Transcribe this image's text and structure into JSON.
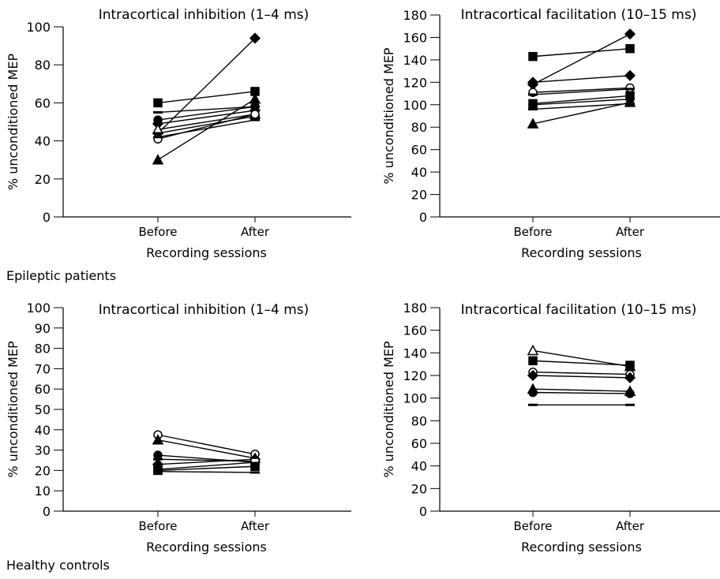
{
  "group_captions": [
    "Epileptic patients",
    "Healthy controls"
  ],
  "chart_data": [
    {
      "type": "line",
      "group": "Epileptic patients",
      "title": "Intracortical inhibition (1–4 ms)",
      "xlabel": "Recording sessions",
      "ylabel": "% unconditioned MEP",
      "categories": [
        "Before",
        "After"
      ],
      "ylim": [
        0,
        100
      ],
      "yticks": [
        0,
        20,
        40,
        60,
        80,
        100
      ],
      "grid": false,
      "legend": "none",
      "series": [
        {
          "marker": "diamond-filled",
          "values": [
            44,
            94
          ]
        },
        {
          "marker": "square-filled",
          "values": [
            60,
            66
          ]
        },
        {
          "marker": "dash",
          "values": [
            55,
            58
          ]
        },
        {
          "marker": "circle-filled",
          "values": [
            51,
            58
          ]
        },
        {
          "marker": "diamond-filled",
          "values": [
            49,
            56
          ]
        },
        {
          "marker": "triangle-open",
          "values": [
            46,
            54
          ]
        },
        {
          "marker": "dash",
          "values": [
            44,
            53
          ]
        },
        {
          "marker": "circle-open",
          "values": [
            41,
            54
          ]
        },
        {
          "marker": "dash",
          "values": [
            42,
            51
          ]
        },
        {
          "marker": "triangle-filled",
          "values": [
            30,
            62
          ]
        }
      ]
    },
    {
      "type": "line",
      "group": "Epileptic patients",
      "title": "Intracortical facilitation (10–15 ms)",
      "xlabel": "Recording sessions",
      "ylabel": "% unconditioned MEP",
      "categories": [
        "Before",
        "After"
      ],
      "ylim": [
        0,
        180
      ],
      "yticks": [
        0,
        20,
        40,
        60,
        80,
        100,
        120,
        140,
        160,
        180
      ],
      "grid": false,
      "legend": "none",
      "series": [
        {
          "marker": "square-filled",
          "values": [
            143,
            150
          ]
        },
        {
          "marker": "diamond-filled",
          "values": [
            118,
            163
          ]
        },
        {
          "marker": "diamond-filled",
          "values": [
            120,
            126
          ]
        },
        {
          "marker": "circle-open",
          "values": [
            111,
            115
          ]
        },
        {
          "marker": "dash",
          "values": [
            109,
            114
          ]
        },
        {
          "marker": "square-filled",
          "values": [
            101,
            108
          ]
        },
        {
          "marker": "circle-filled",
          "values": [
            100,
            105
          ]
        },
        {
          "marker": "dash",
          "values": [
            96,
            101
          ]
        },
        {
          "marker": "triangle-filled",
          "values": [
            83,
            102
          ]
        }
      ]
    },
    {
      "type": "line",
      "group": "Healthy controls",
      "title": "Intracortical inhibition (1–4 ms)",
      "xlabel": "Recording sessions",
      "ylabel": "% unconditioned MEP",
      "categories": [
        "Before",
        "After"
      ],
      "ylim": [
        0,
        100
      ],
      "yticks": [
        0,
        10,
        20,
        30,
        40,
        50,
        60,
        70,
        80,
        90,
        100
      ],
      "grid": false,
      "legend": "none",
      "series": [
        {
          "marker": "circle-open",
          "values": [
            37.5,
            28
          ]
        },
        {
          "marker": "triangle-filled",
          "values": [
            35,
            26
          ]
        },
        {
          "marker": "circle-filled",
          "values": [
            27.5,
            24
          ]
        },
        {
          "marker": "dash",
          "values": [
            25.5,
            24.5
          ]
        },
        {
          "marker": "diamond-filled",
          "values": [
            23,
            25.5
          ]
        },
        {
          "marker": "square-open",
          "values": [
            20.5,
            24
          ]
        },
        {
          "marker": "square-filled",
          "values": [
            20,
            22
          ]
        },
        {
          "marker": "dash",
          "values": [
            19.5,
            19
          ]
        }
      ]
    },
    {
      "type": "line",
      "group": "Healthy controls",
      "title": "Intracortical facilitation (10–15 ms)",
      "xlabel": "Recording sessions",
      "ylabel": "% unconditioned MEP",
      "categories": [
        "Before",
        "After"
      ],
      "ylim": [
        0,
        180
      ],
      "yticks": [
        0,
        20,
        40,
        60,
        80,
        100,
        120,
        140,
        160,
        180
      ],
      "grid": false,
      "legend": "none",
      "series": [
        {
          "marker": "triangle-open",
          "values": [
            142,
            128
          ]
        },
        {
          "marker": "square-filled",
          "values": [
            133,
            129
          ]
        },
        {
          "marker": "circle-open",
          "values": [
            123,
            121
          ]
        },
        {
          "marker": "diamond-filled",
          "values": [
            120,
            118
          ]
        },
        {
          "marker": "triangle-filled",
          "values": [
            108,
            106
          ]
        },
        {
          "marker": "circle-filled",
          "values": [
            105,
            104
          ]
        },
        {
          "marker": "dash",
          "values": [
            94,
            94
          ]
        }
      ]
    }
  ]
}
